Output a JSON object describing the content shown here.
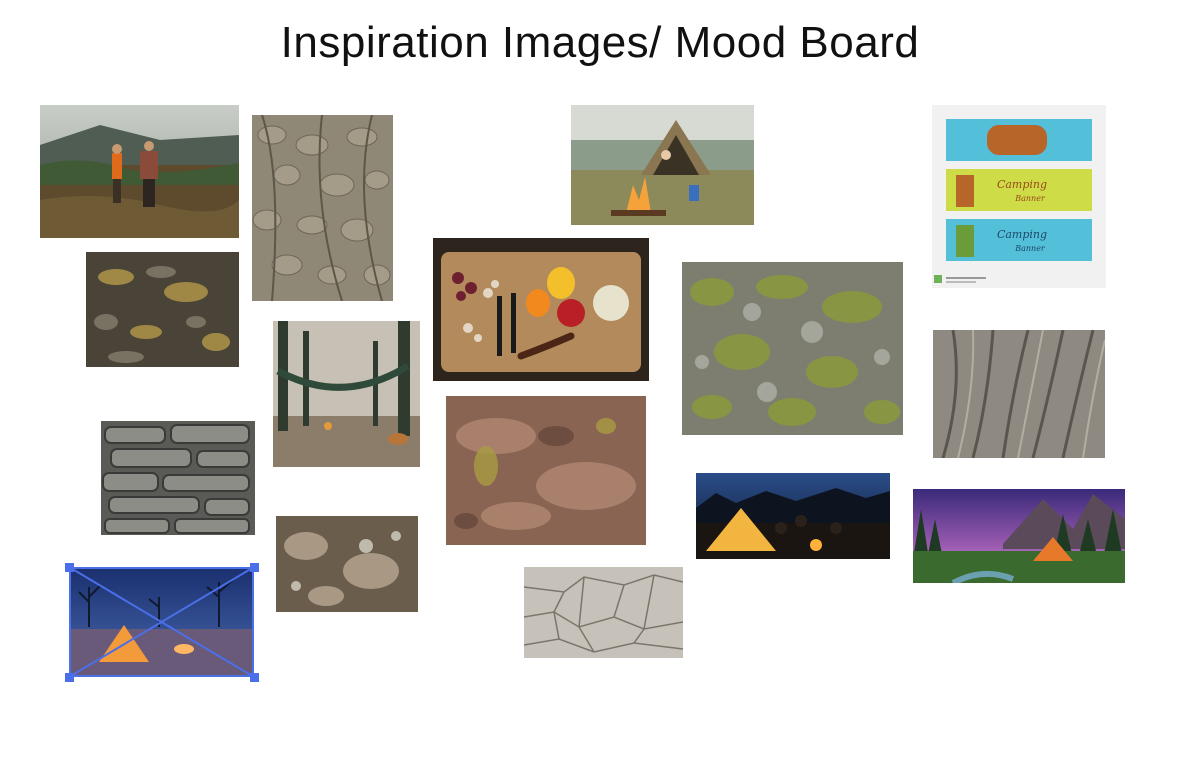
{
  "page": {
    "title": "Inspiration Images/ Mood Board"
  },
  "board": {
    "selected_image": "camp-tent-night",
    "images": [
      {
        "id": "hikers-meadow",
        "icon": "photo-icon"
      },
      {
        "id": "ivy-wall",
        "icon": "photo-icon"
      },
      {
        "id": "lichen-rock-dark",
        "icon": "photo-icon"
      },
      {
        "id": "hammock-camp",
        "icon": "photo-icon"
      },
      {
        "id": "bark-texture",
        "icon": "photo-icon"
      },
      {
        "id": "rock-lichen-close",
        "icon": "photo-icon"
      },
      {
        "id": "camp-tent-night",
        "icon": "photo-icon"
      },
      {
        "id": "campfire-tent",
        "icon": "photo-icon"
      },
      {
        "id": "cutting-board-food",
        "icon": "photo-icon"
      },
      {
        "id": "red-rock-texture",
        "icon": "photo-icon"
      },
      {
        "id": "cracked-earth",
        "icon": "photo-icon"
      },
      {
        "id": "green-lichen",
        "icon": "photo-icon"
      },
      {
        "id": "tent-campfire-night",
        "icon": "photo-icon"
      },
      {
        "id": "camping-banners",
        "icon": "photo-icon"
      },
      {
        "id": "tree-trunk",
        "icon": "photo-icon"
      },
      {
        "id": "mountain-tent-dusk",
        "icon": "photo-icon"
      }
    ],
    "banner_labels": {
      "banner_2": "Camping",
      "banner_2b": "Banner",
      "banner_3": "Camping",
      "banner_3b": "Banner"
    }
  },
  "colors": {
    "selection": "#4a6fe8"
  }
}
